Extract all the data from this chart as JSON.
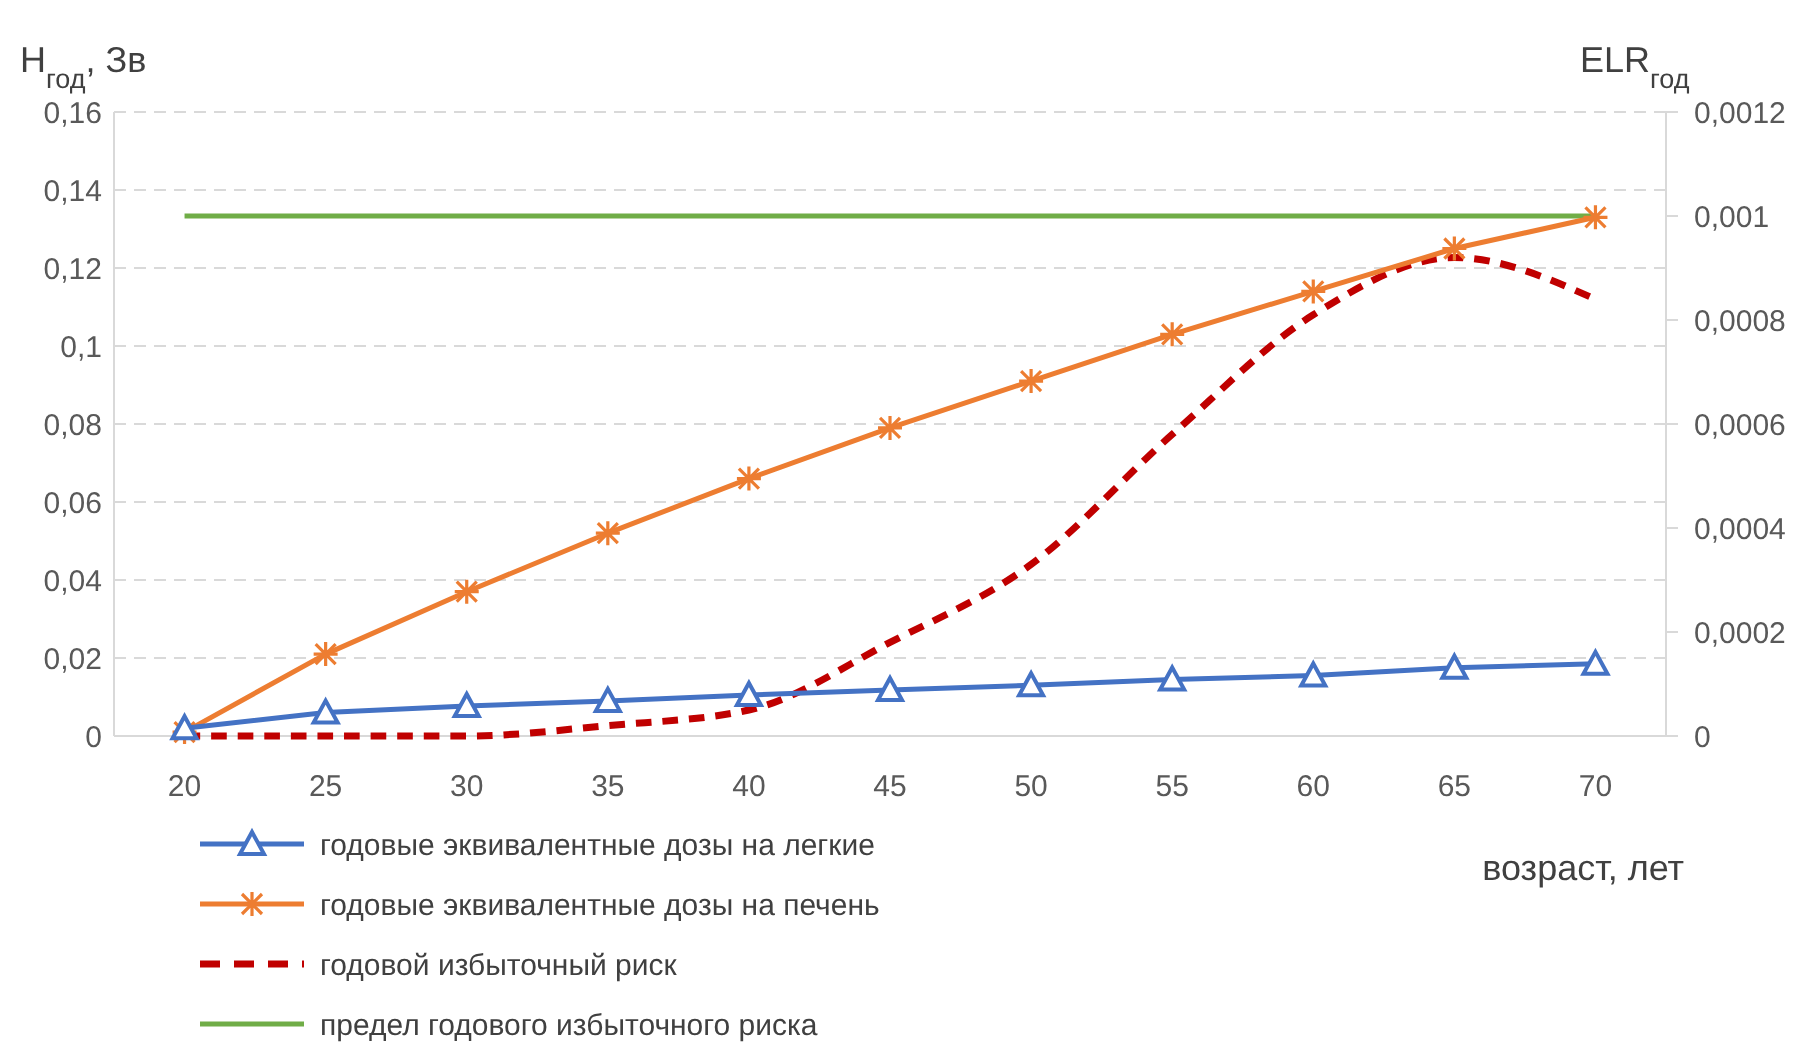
{
  "chart_data": {
    "type": "line",
    "ylabel": "H$_{год}$, Зв",
    "y2label": "ELR$_{год}$",
    "xlabel": "возраст, лет",
    "categories": [
      "20",
      "25",
      "30",
      "35",
      "40",
      "45",
      "50",
      "55",
      "60",
      "65",
      "70"
    ],
    "ylim": [
      0,
      0.16
    ],
    "yticks": [
      0,
      {
        "value": 0.02,
        "label": "0,02"
      },
      {
        "value": 0.04,
        "label": "0,04"
      },
      {
        "value": 0.06,
        "label": "0,06"
      },
      {
        "value": 0.08,
        "label": "0,08"
      },
      {
        "value": 0.1,
        "label": "0,1"
      },
      {
        "value": 0.12,
        "label": "0,12"
      },
      {
        "value": 0.14,
        "label": "0,14"
      },
      {
        "value": 0.16,
        "label": "0,16"
      }
    ],
    "y2lim": [
      0,
      0.0012
    ],
    "y2ticks": [
      0,
      {
        "value": 0.0002,
        "label": "0,0002"
      },
      {
        "value": 0.0004,
        "label": "0,0004"
      },
      {
        "value": 0.0006,
        "label": "0,0006"
      },
      {
        "value": 0.0008,
        "label": "0,0008"
      },
      {
        "value": 0.001,
        "label": "0,001"
      },
      {
        "value": 0.0012,
        "label": "0,0012"
      }
    ],
    "grid": "y",
    "legend": "bottom left",
    "series": [
      {
        "name": "годовые эквивалентные дозы на легкие",
        "color": "#4472c4",
        "marker": "triangle",
        "line_style": "solid",
        "values": [
          0.002,
          0.006,
          0.0077,
          0.009,
          0.0105,
          0.0118,
          0.013,
          0.0145,
          0.0155,
          0.0175,
          0.0185
        ]
      },
      {
        "name": "годовые эквивалентные дозы на печень",
        "color": "#ed7d31",
        "marker": "cross",
        "line_style": "solid",
        "values": [
          0.001,
          0.021,
          0.037,
          0.052,
          0.066,
          0.079,
          0.091,
          0.103,
          0.114,
          0.125,
          0.133
        ]
      },
      {
        "name": "годовой избыточный риск",
        "color": "#c00000",
        "marker": "none",
        "line_style": "dashed",
        "axis": "y2",
        "values": [
          0,
          0,
          0,
          2e-05,
          5e-05,
          0.00018,
          0.00033,
          0.00058,
          0.00081,
          0.00092,
          0.00084
        ]
      },
      {
        "name": "предел годового избыточного риска",
        "color": "#70ad47",
        "marker": "none",
        "line_style": "solid",
        "axis": "y2",
        "values": [
          0.001,
          0.001,
          0.001,
          0.001,
          0.001,
          0.001,
          0.001,
          0.001,
          0.001,
          0.001,
          0.001
        ]
      }
    ]
  }
}
